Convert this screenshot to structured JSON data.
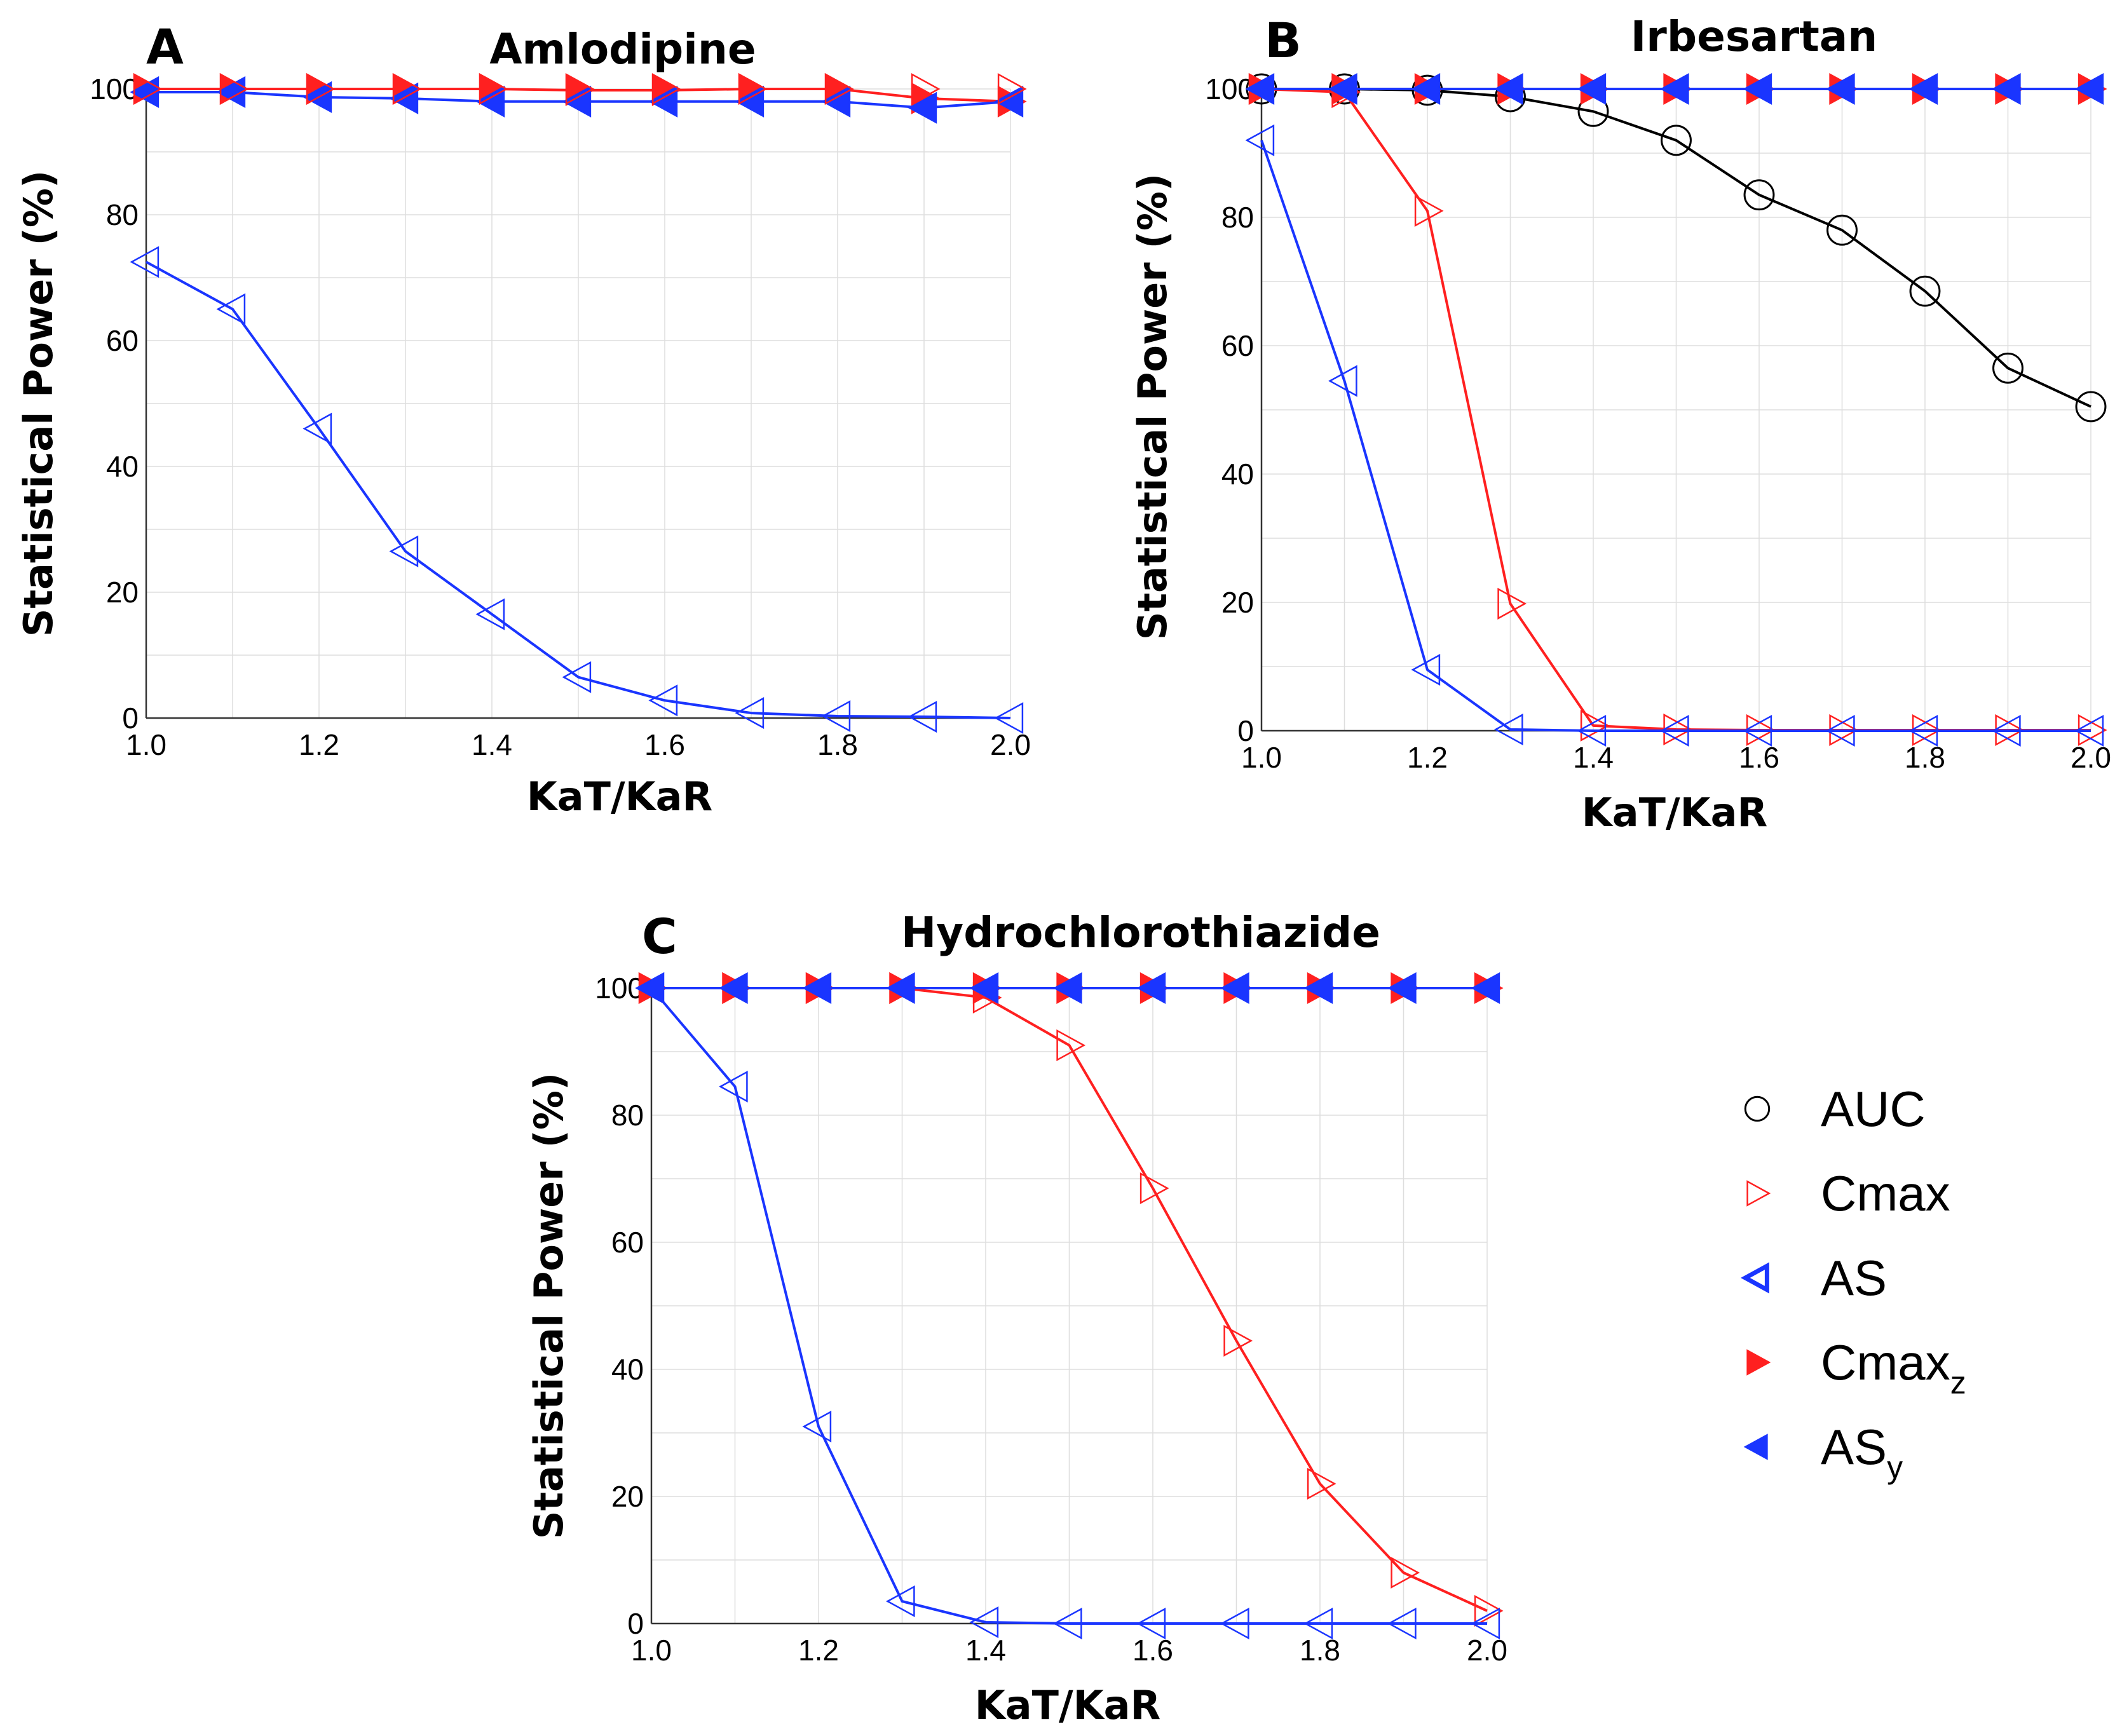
{
  "colors": {
    "AUC": "#000000",
    "Cmax": "#ff2020",
    "AS": "#1a35ff",
    "Cmax_z": "#ff2020",
    "AS_y": "#1a35ff"
  },
  "legend": [
    {
      "key": "AUC",
      "label": "AUC",
      "sub": "",
      "marker": "circle-open"
    },
    {
      "key": "Cmax",
      "label": "Cmax",
      "sub": "",
      "marker": "right-open"
    },
    {
      "key": "AS",
      "label": "AS",
      "sub": "",
      "marker": "left-open-bold"
    },
    {
      "key": "Cmax_z",
      "label": "Cmax",
      "sub": "z",
      "marker": "right-filled"
    },
    {
      "key": "AS_y",
      "label": "AS",
      "sub": "y",
      "marker": "left-filled"
    }
  ],
  "chart_data": [
    {
      "type": "line",
      "letter": "A",
      "title": "Amlodipine",
      "xlabel": "KaT/KaR",
      "ylabel": "Statistical Power (%)",
      "xlim": [
        1.0,
        2.0
      ],
      "ylim": [
        0,
        100
      ],
      "xticks": [
        "1.0",
        "1.2",
        "1.4",
        "1.6",
        "1.8",
        "2.0"
      ],
      "yticks": [
        "0",
        "20",
        "40",
        "60",
        "80",
        "100"
      ],
      "grid": true,
      "x": [
        1.0,
        1.1,
        1.2,
        1.3,
        1.4,
        1.5,
        1.6,
        1.7,
        1.8,
        1.9,
        2.0
      ],
      "series": [
        {
          "key": "Cmax_z",
          "marker": "right-filled",
          "values": [
            100,
            100,
            100,
            100,
            100,
            99.8,
            99.8,
            100,
            100,
            98.5,
            98
          ]
        },
        {
          "key": "AS_y",
          "marker": "left-filled",
          "values": [
            99.5,
            99.5,
            98.7,
            98.5,
            98,
            98,
            98,
            98,
            98,
            97,
            98
          ]
        },
        {
          "key": "Cmax",
          "marker": "right-open",
          "line": false,
          "values": [
            100,
            100,
            100,
            100,
            100,
            100,
            100,
            100,
            100,
            100,
            100
          ]
        },
        {
          "key": "AS",
          "marker": "left-open",
          "values": [
            72.5,
            65,
            46,
            26.5,
            16.5,
            6.5,
            2.8,
            0.8,
            0.3,
            0.2,
            0
          ]
        }
      ]
    },
    {
      "type": "line",
      "letter": "B",
      "title": "Irbesartan",
      "xlabel": "KaT/KaR",
      "ylabel": "Statistical Power (%)",
      "xlim": [
        1.0,
        2.0
      ],
      "ylim": [
        0,
        100
      ],
      "xticks": [
        "1.0",
        "1.2",
        "1.4",
        "1.6",
        "1.8",
        "2.0"
      ],
      "yticks": [
        "0",
        "20",
        "40",
        "60",
        "80",
        "100"
      ],
      "grid": true,
      "x": [
        1.0,
        1.1,
        1.2,
        1.3,
        1.4,
        1.5,
        1.6,
        1.7,
        1.8,
        1.9,
        2.0
      ],
      "series": [
        {
          "key": "AUC",
          "marker": "circle-open",
          "values": [
            100,
            100,
            99.8,
            98.8,
            96.5,
            92,
            83.5,
            78,
            68.5,
            56.5,
            50.5
          ]
        },
        {
          "key": "Cmax",
          "marker": "right-open",
          "values": [
            100,
            99.5,
            81,
            19.8,
            0.8,
            0.2,
            0.1,
            0.1,
            0.1,
            0.1,
            0.1
          ]
        },
        {
          "key": "AS",
          "marker": "left-open",
          "values": [
            92,
            54.5,
            9.5,
            0.2,
            0,
            0,
            0,
            0,
            0,
            0,
            0
          ]
        },
        {
          "key": "Cmax_z",
          "marker": "right-filled",
          "values": [
            100,
            100,
            100,
            100,
            100,
            100,
            100,
            100,
            100,
            100,
            100
          ]
        },
        {
          "key": "AS_y",
          "marker": "left-filled",
          "values": [
            100,
            100,
            100,
            100,
            100,
            100,
            100,
            100,
            100,
            100,
            100
          ]
        }
      ]
    },
    {
      "type": "line",
      "letter": "C",
      "title": "Hydrochlorothiazide",
      "xlabel": "KaT/KaR",
      "ylabel": "Statistical Power (%)",
      "xlim": [
        1.0,
        2.0
      ],
      "ylim": [
        0,
        100
      ],
      "xticks": [
        "1.0",
        "1.2",
        "1.4",
        "1.6",
        "1.8",
        "2.0"
      ],
      "yticks": [
        "0",
        "20",
        "40",
        "60",
        "80",
        "100"
      ],
      "grid": true,
      "x": [
        1.0,
        1.1,
        1.2,
        1.3,
        1.4,
        1.5,
        1.6,
        1.7,
        1.8,
        1.9,
        2.0
      ],
      "series": [
        {
          "key": "Cmax",
          "marker": "right-open",
          "values": [
            100,
            100,
            100,
            100,
            98.5,
            91,
            68.5,
            44.5,
            22,
            8,
            2
          ]
        },
        {
          "key": "AS",
          "marker": "left-open",
          "values": [
            100,
            84.5,
            31,
            3.5,
            0.2,
            0,
            0,
            0,
            0,
            0,
            0
          ]
        },
        {
          "key": "Cmax_z",
          "marker": "right-filled",
          "values": [
            100,
            100,
            100,
            100,
            100,
            100,
            100,
            100,
            100,
            100,
            100
          ]
        },
        {
          "key": "AS_y",
          "marker": "left-filled",
          "values": [
            100,
            100,
            100,
            100,
            100,
            100,
            100,
            100,
            100,
            100,
            100
          ]
        }
      ]
    }
  ]
}
